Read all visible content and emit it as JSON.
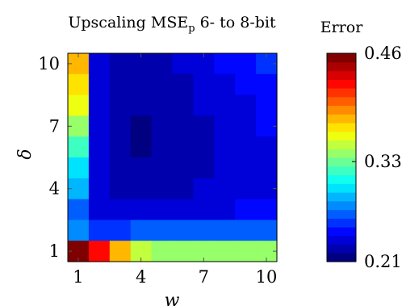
{
  "chart_data": {
    "type": "heatmap",
    "title": "Upscaling MSE",
    "title_subscript": "p",
    "title_suffix": " 6- to 8-bit",
    "xlabel": "w",
    "ylabel": "δ",
    "x_values": [
      1,
      2,
      3,
      4,
      5,
      6,
      7,
      8,
      9,
      10
    ],
    "y_values": [
      1,
      2,
      3,
      4,
      5,
      6,
      7,
      8,
      9,
      10
    ],
    "x_ticks": [
      "1",
      "4",
      "7",
      "10"
    ],
    "y_ticks": [
      "1",
      "4",
      "7",
      "10"
    ],
    "colormap": "jet",
    "color_range": [
      0.21,
      0.46
    ],
    "colorbar": {
      "label": "Error",
      "ticks": [
        "0.21",
        "0.33",
        "0.46"
      ]
    },
    "rows_top_to_bottom_delta": [
      10,
      9,
      8,
      7,
      6,
      5,
      4,
      3,
      2,
      1
    ],
    "values": [
      [
        0.385,
        0.24,
        0.226,
        0.225,
        0.228,
        0.234,
        0.238,
        0.244,
        0.248,
        0.254
      ],
      [
        0.372,
        0.236,
        0.223,
        0.222,
        0.225,
        0.23,
        0.234,
        0.24,
        0.244,
        0.25
      ],
      [
        0.362,
        0.233,
        0.222,
        0.221,
        0.223,
        0.227,
        0.231,
        0.236,
        0.241,
        0.246
      ],
      [
        0.342,
        0.231,
        0.221,
        0.22,
        0.222,
        0.226,
        0.23,
        0.234,
        0.238,
        0.242
      ],
      [
        0.322,
        0.231,
        0.221,
        0.22,
        0.222,
        0.225,
        0.229,
        0.233,
        0.236,
        0.24
      ],
      [
        0.302,
        0.231,
        0.222,
        0.221,
        0.223,
        0.226,
        0.229,
        0.232,
        0.235,
        0.239
      ],
      [
        0.292,
        0.232,
        0.226,
        0.225,
        0.227,
        0.229,
        0.231,
        0.233,
        0.236,
        0.239
      ],
      [
        0.272,
        0.236,
        0.234,
        0.234,
        0.235,
        0.236,
        0.238,
        0.24,
        0.242,
        0.244
      ],
      [
        0.28,
        0.262,
        0.262,
        0.263,
        0.264,
        0.265,
        0.266,
        0.267,
        0.268,
        0.27
      ],
      [
        0.46,
        0.42,
        0.38,
        0.355,
        0.345,
        0.342,
        0.34,
        0.34,
        0.34,
        0.34
      ]
    ]
  }
}
